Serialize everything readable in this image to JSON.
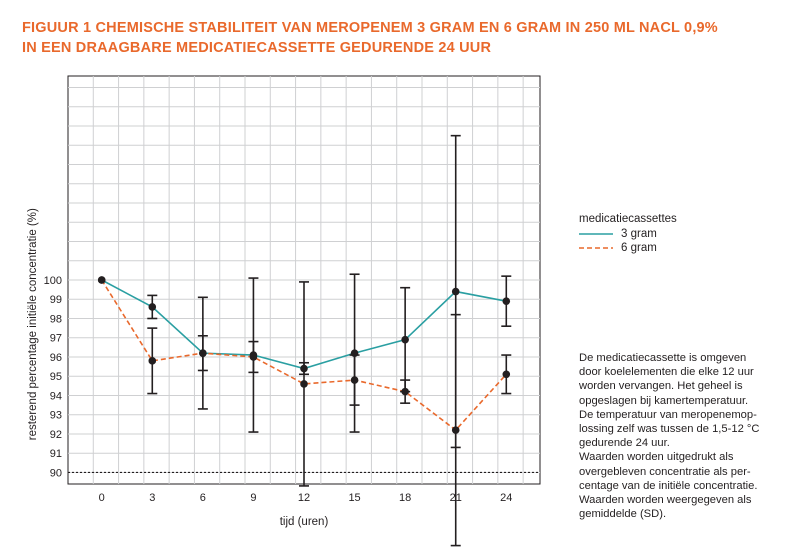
{
  "title": {
    "line1": "FIGUUR 1 CHEMISCHE STABILITEIT VAN MEROPENEM 3 GRAM EN 6 GRAM IN 250 ML NACL 0,9%",
    "line2": "IN EEN DRAAGBARE MEDICATIECASSETTE GEDURENDE 24 UUR"
  },
  "legend": {
    "title": "medicatiecassettes",
    "items": [
      {
        "label": "3 gram",
        "color": "#2a9fa2",
        "style": "solid"
      },
      {
        "label": "6 gram",
        "color": "#e9692c",
        "style": "dashed"
      }
    ]
  },
  "note": {
    "lines": [
      "De medicatiecassette is omgeven",
      "door koelelementen die elke 12 uur",
      "worden vervangen. Het geheel is",
      "opgeslagen bij kamertemperatuur.",
      "De temperatuur van meropenemop-",
      "lossing zelf was tussen de 1,5-12 °C",
      "gedurende 24 uur.",
      "Waarden worden uitgedrukt als",
      "overgebleven concentratie als per-",
      "centage van de initiële concentratie.",
      "Waarden worden weergegeven als",
      "gemiddelde (SD)."
    ]
  },
  "chart_data": {
    "type": "line",
    "xlabel": "tijd (uren)",
    "ylabel": "resterend percentage initiële concentratie (%)",
    "x": [
      0,
      3,
      6,
      9,
      12,
      15,
      18,
      21,
      24
    ],
    "xticks": [
      "0",
      "3",
      "6",
      "9",
      "12",
      "15",
      "18",
      "21",
      "24"
    ],
    "yticks": [
      "90",
      "91",
      "92",
      "93",
      "94",
      "95",
      "96",
      "97",
      "98",
      "99",
      "100"
    ],
    "ylim": [
      89.4,
      110.6
    ],
    "reference_line": 90,
    "grid": true,
    "series": [
      {
        "name": "3 gram",
        "color": "#2a9fa2",
        "style": "solid",
        "values": [
          100,
          98.6,
          96.2,
          96.1,
          95.4,
          96.2,
          96.9,
          99.4,
          98.9
        ],
        "sd": [
          0,
          0.6,
          0.9,
          4.0,
          0.3,
          4.1,
          2.7,
          8.1,
          1.3
        ]
      },
      {
        "name": "6 gram",
        "color": "#e9692c",
        "style": "dashed",
        "values": [
          100,
          95.8,
          96.2,
          96.0,
          94.6,
          94.8,
          94.2,
          92.2,
          95.1
        ],
        "sd": [
          0,
          1.7,
          2.9,
          0.8,
          5.3,
          1.3,
          0.6,
          6.0,
          1.0
        ]
      }
    ]
  }
}
